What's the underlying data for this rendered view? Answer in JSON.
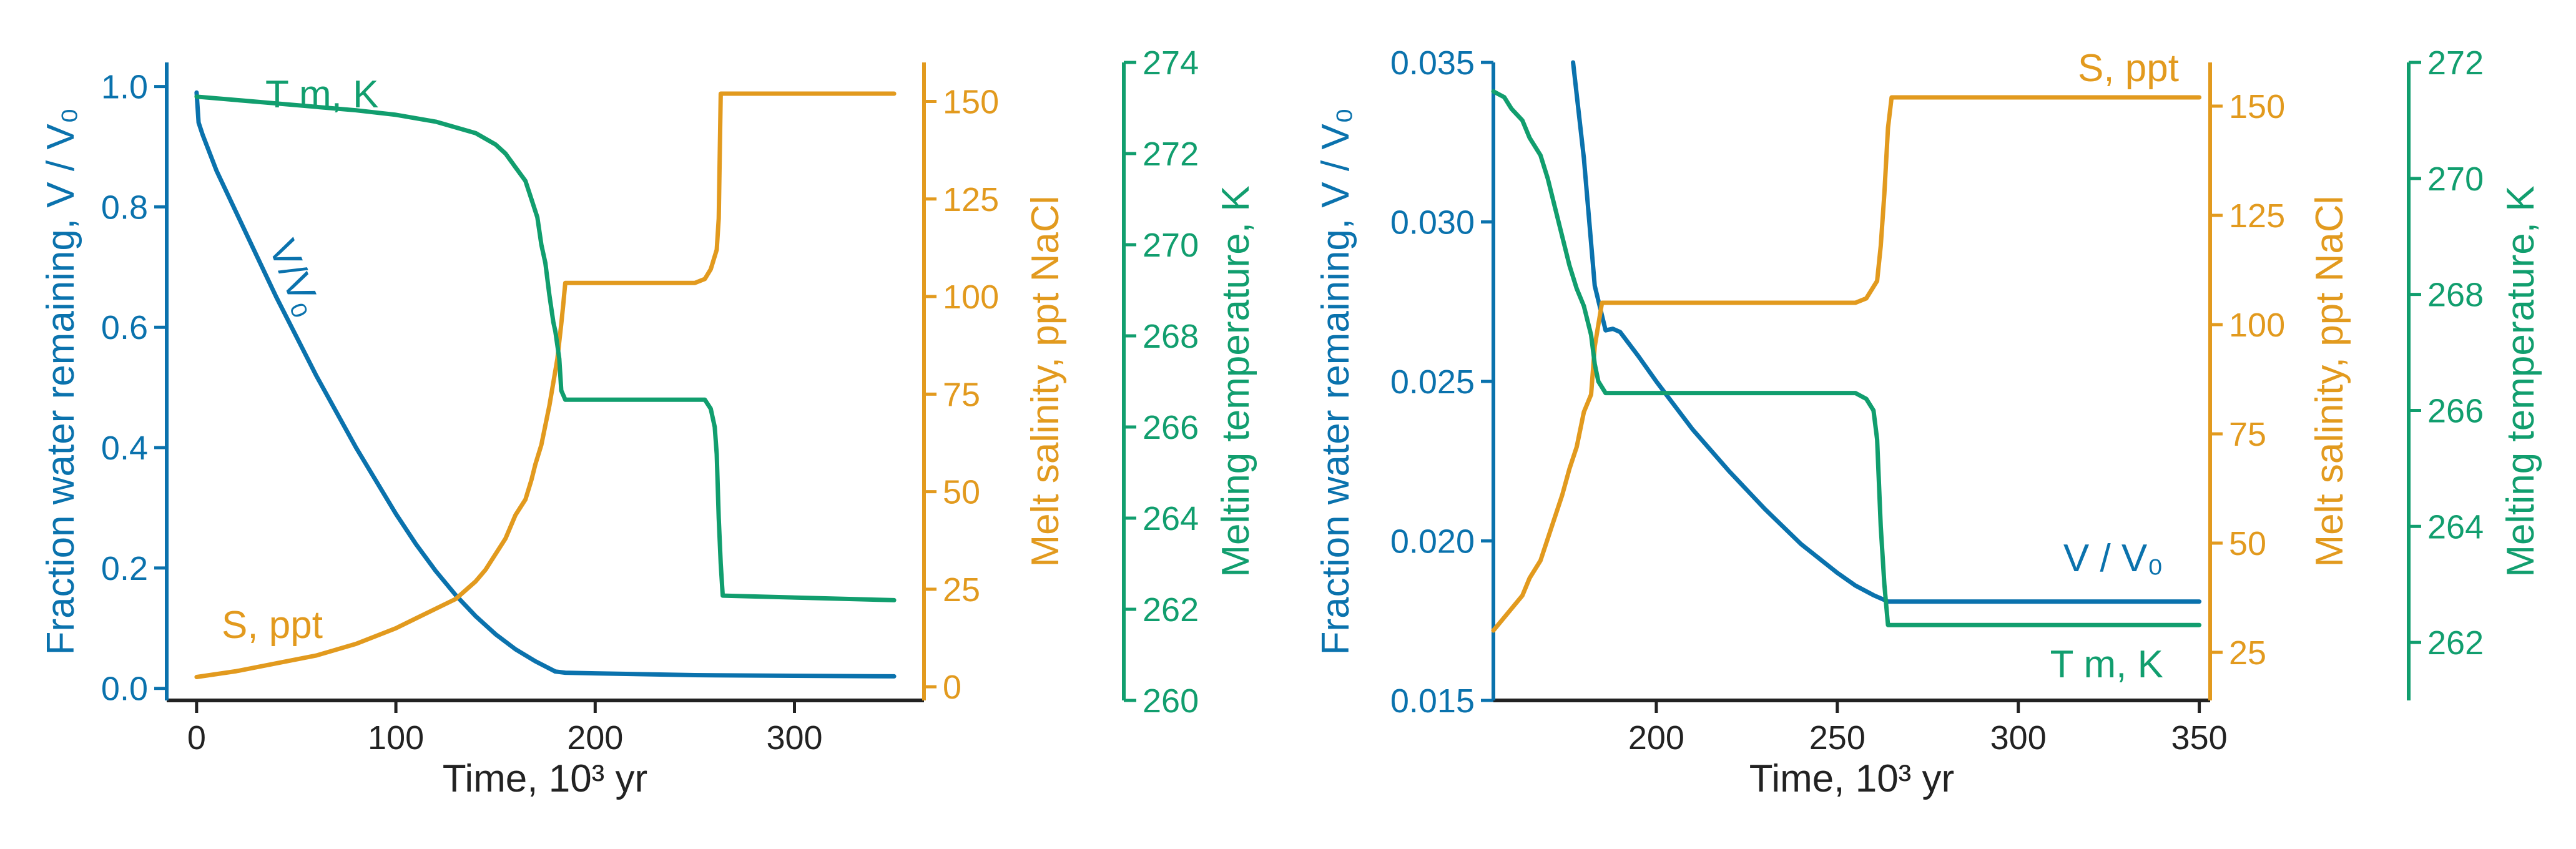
{
  "colors": {
    "blue": "#0a72ad",
    "orange": "#e29a1e",
    "green": "#119e6e",
    "black": "#222222"
  },
  "left_panel": {
    "xlabel": "Time, 10³ yr",
    "y1label": "Fraction water remaining, V / V₀",
    "y2label": "Melt salinity, ppt NaCl",
    "y3label": "Melting temperature, K",
    "annot_tm": "T m, K",
    "annot_v": "V/V₀",
    "annot_s": "S, ppt"
  },
  "right_panel": {
    "xlabel": "Time, 10³ yr",
    "y1label": "Fraction water remaining, V / V₀",
    "y2label": "Melt salinity, ppt NaCl",
    "y3label": "Melting temperature, K",
    "annot_s": "S, ppt",
    "annot_v": "V / V₀",
    "annot_tm": "T m, K"
  },
  "chart_data": [
    {
      "type": "line",
      "x_ticks": [
        0,
        100,
        200,
        300
      ],
      "xlim": [
        -15,
        365
      ],
      "y1_ticks": [
        "0.0",
        "0.2",
        "0.4",
        "0.6",
        "0.8",
        "1.0"
      ],
      "y1lim": [
        -0.02,
        1.04
      ],
      "y2_ticks": [
        "0",
        "25",
        "50",
        "75",
        "100",
        "125",
        "150"
      ],
      "y2lim": [
        -3.5,
        160
      ],
      "y3_ticks": [
        "260",
        "262",
        "264",
        "266",
        "268",
        "270",
        "272",
        "274"
      ],
      "y3lim": [
        260,
        274
      ],
      "series": [
        {
          "axis": "left",
          "color_key": "blue",
          "x": [
            0,
            1,
            3,
            10,
            20,
            30,
            40,
            50,
            60,
            70,
            80,
            90,
            100,
            110,
            120,
            130,
            140,
            150,
            160,
            170,
            180,
            185,
            200,
            250,
            300,
            350
          ],
          "y": [
            0.99,
            0.94,
            0.92,
            0.86,
            0.79,
            0.72,
            0.65,
            0.585,
            0.52,
            0.46,
            0.4,
            0.345,
            0.29,
            0.24,
            0.195,
            0.155,
            0.12,
            0.09,
            0.065,
            0.045,
            0.028,
            0.026,
            0.025,
            0.022,
            0.021,
            0.02
          ]
        },
        {
          "axis": "right1",
          "color_key": "orange",
          "x": [
            0,
            20,
            40,
            60,
            80,
            100,
            110,
            120,
            130,
            140,
            145,
            150,
            155,
            160,
            165,
            168,
            170,
            173,
            175,
            177,
            179,
            181,
            183,
            184,
            185,
            200,
            250,
            255,
            258,
            261,
            262,
            263,
            350
          ],
          "y": [
            2.5,
            4,
            6,
            8,
            11,
            15,
            17.5,
            20,
            22.5,
            27,
            30,
            34,
            38,
            44,
            48,
            53,
            57,
            62,
            67,
            72,
            78,
            84,
            93,
            98,
            103.5,
            103.5,
            103.5,
            104.5,
            107,
            112,
            120,
            152,
            152
          ]
        },
        {
          "axis": "right2",
          "color_key": "green",
          "x": [
            0,
            40,
            80,
            100,
            120,
            140,
            150,
            155,
            160,
            165,
            168,
            171,
            173,
            175,
            177,
            178,
            179,
            180,
            182,
            183,
            185,
            230,
            255,
            258,
            260,
            261,
            262,
            263,
            264,
            350
          ],
          "y": [
            273.25,
            273.1,
            272.95,
            272.85,
            272.7,
            272.45,
            272.2,
            272.0,
            271.7,
            271.4,
            271.0,
            270.6,
            270.0,
            269.6,
            268.9,
            268.6,
            268.3,
            268.1,
            267.5,
            266.8,
            266.6,
            266.6,
            266.6,
            266.4,
            266.0,
            265.4,
            264.0,
            263.0,
            262.3,
            262.2
          ]
        }
      ]
    },
    {
      "type": "line",
      "x_ticks": [
        200,
        250,
        300,
        350
      ],
      "xlim": [
        155,
        353
      ],
      "y1_ticks": [
        "0.015",
        "0.020",
        "0.025",
        "0.030",
        "0.035"
      ],
      "y1lim": [
        0.015,
        0.035
      ],
      "y2_ticks": [
        "25",
        "50",
        "75",
        "100",
        "125",
        "150"
      ],
      "y2lim": [
        14,
        160
      ],
      "y3_ticks": [
        "262",
        "264",
        "266",
        "268",
        "270",
        "272"
      ],
      "y3lim": [
        261,
        272
      ],
      "series": [
        {
          "axis": "left",
          "color_key": "blue",
          "x": [
            177,
            180,
            183,
            186,
            188,
            190,
            195,
            200,
            210,
            220,
            230,
            240,
            250,
            255,
            260,
            264,
            350
          ],
          "y": [
            0.035,
            0.032,
            0.028,
            0.0266,
            0.02665,
            0.02655,
            0.0258,
            0.025,
            0.0235,
            0.0222,
            0.021,
            0.0199,
            0.019,
            0.0186,
            0.0183,
            0.0181,
            0.0181
          ]
        },
        {
          "axis": "right1",
          "color_key": "orange",
          "x": [
            155,
            158,
            160,
            163,
            165,
            168,
            170,
            172,
            174,
            176,
            178,
            180,
            182,
            183,
            184,
            185,
            255,
            258,
            261,
            262,
            263,
            264,
            265,
            350
          ],
          "y": [
            30,
            33,
            35,
            38,
            42,
            46,
            51,
            56,
            61,
            67,
            72,
            80,
            84,
            95,
            100,
            105,
            105,
            106,
            110,
            118,
            130,
            145,
            152,
            152
          ]
        },
        {
          "axis": "right2",
          "color_key": "green",
          "x": [
            155,
            158,
            160,
            163,
            165,
            168,
            170,
            172,
            174,
            176,
            178,
            180,
            182,
            183,
            184,
            186,
            255,
            258,
            260,
            261,
            262,
            263,
            264,
            350
          ],
          "y": [
            271.5,
            271.4,
            271.2,
            271.0,
            270.7,
            270.4,
            270.0,
            269.5,
            269.0,
            268.5,
            268.1,
            267.8,
            267.3,
            266.8,
            266.5,
            266.3,
            266.3,
            266.2,
            266.0,
            265.5,
            264.0,
            263.0,
            262.3,
            262.3
          ]
        }
      ]
    }
  ]
}
